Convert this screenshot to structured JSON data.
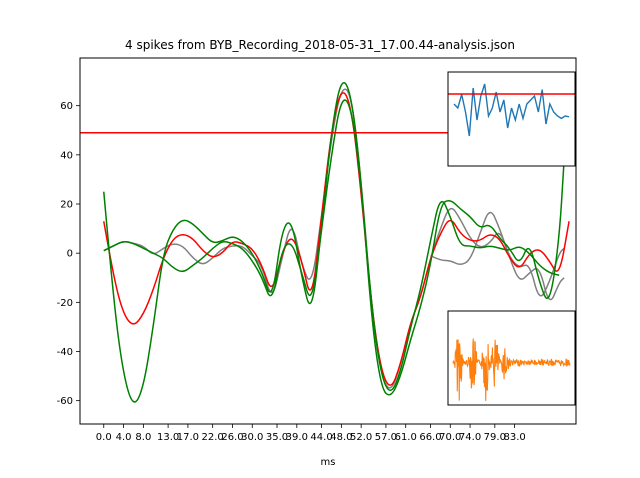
{
  "chart_data": {
    "type": "line",
    "title": "4 spikes from BYB_Recording_2018-05-31_17.00.44-analysis.json",
    "xlabel": "ms",
    "ylabel": "",
    "xlim": [
      -4.8,
      95.4
    ],
    "ylim": [
      -69.5,
      79.4
    ],
    "x_tick_labels": [
      "0.0",
      "4.0",
      "8.0",
      "13.0",
      "17.0",
      "22.0",
      "26.0",
      "30.0",
      "35.0",
      "39.0",
      "44.0",
      "48.0",
      "52.0",
      "57.0",
      "61.0",
      "66.0",
      "70.0",
      "74.0",
      "79.0",
      "83.0"
    ],
    "y_ticks": [
      -60,
      -40,
      -20,
      0,
      20,
      40,
      60
    ],
    "threshold": {
      "value": 49,
      "color": "#ff0000"
    },
    "series": [
      {
        "color": "#808080",
        "points": [
          [
            0,
            1
          ],
          [
            2,
            3
          ],
          [
            4,
            5
          ],
          [
            6,
            4
          ],
          [
            8,
            3
          ],
          [
            10,
            -1
          ],
          [
            12,
            2
          ],
          [
            14,
            4
          ],
          [
            16,
            3
          ],
          [
            18,
            -2
          ],
          [
            20,
            -5
          ],
          [
            22,
            -2
          ],
          [
            24,
            2
          ],
          [
            26,
            3
          ],
          [
            28,
            3
          ],
          [
            30,
            -1
          ],
          [
            32,
            -5
          ],
          [
            34,
            -20
          ],
          [
            36,
            -2
          ],
          [
            38,
            14
          ],
          [
            40,
            -5
          ],
          [
            42,
            -14
          ],
          [
            44,
            15
          ],
          [
            46,
            47
          ],
          [
            48,
            68
          ],
          [
            50,
            65
          ],
          [
            52,
            30
          ],
          [
            54,
            -20
          ],
          [
            56,
            -50
          ],
          [
            58,
            -57
          ],
          [
            60,
            -45
          ],
          [
            62,
            -28
          ],
          [
            64,
            -18
          ],
          [
            66,
            -2
          ],
          [
            68,
            10
          ],
          [
            70,
            20
          ],
          [
            72,
            14
          ],
          [
            74,
            6
          ],
          [
            76,
            2
          ],
          [
            78,
            4
          ],
          [
            80,
            10
          ],
          [
            82,
            -2
          ],
          [
            84,
            -6
          ],
          [
            86,
            -4
          ],
          [
            88,
            -20
          ],
          [
            90,
            -12
          ],
          [
            92,
            0
          ],
          [
            93,
            2
          ]
        ]
      },
      {
        "color": "#808080",
        "points": [
          [
            66,
            -1
          ],
          [
            68,
            -3
          ],
          [
            70,
            -3
          ],
          [
            72,
            -5
          ],
          [
            74,
            -3
          ],
          [
            76,
            8
          ],
          [
            78,
            19
          ],
          [
            80,
            10
          ],
          [
            82,
            -2
          ],
          [
            84,
            -12
          ],
          [
            86,
            -8
          ],
          [
            88,
            -5
          ],
          [
            90,
            -22
          ],
          [
            92,
            -12
          ],
          [
            93,
            -10
          ]
        ]
      },
      {
        "color": "#ff0000",
        "points": [
          [
            0,
            13
          ],
          [
            2,
            -10
          ],
          [
            4,
            -25
          ],
          [
            6,
            -30
          ],
          [
            8,
            -25
          ],
          [
            10,
            -15
          ],
          [
            12,
            -2
          ],
          [
            14,
            6
          ],
          [
            16,
            8
          ],
          [
            18,
            6
          ],
          [
            20,
            1
          ],
          [
            22,
            -2
          ],
          [
            24,
            0
          ],
          [
            26,
            5
          ],
          [
            28,
            4
          ],
          [
            30,
            2
          ],
          [
            32,
            -5
          ],
          [
            34,
            -17
          ],
          [
            36,
            0
          ],
          [
            38,
            8
          ],
          [
            40,
            -3
          ],
          [
            42,
            -21
          ],
          [
            44,
            15
          ],
          [
            46,
            50
          ],
          [
            48,
            68
          ],
          [
            50,
            60
          ],
          [
            52,
            25
          ],
          [
            54,
            -20
          ],
          [
            56,
            -48
          ],
          [
            58,
            -56
          ],
          [
            60,
            -45
          ],
          [
            62,
            -28
          ],
          [
            64,
            -18
          ],
          [
            66,
            -2
          ],
          [
            68,
            8
          ],
          [
            70,
            15
          ],
          [
            72,
            8
          ],
          [
            74,
            5
          ],
          [
            76,
            5
          ],
          [
            78,
            8
          ],
          [
            80,
            6
          ],
          [
            82,
            -2
          ],
          [
            84,
            -7
          ],
          [
            86,
            0
          ],
          [
            88,
            2
          ],
          [
            90,
            -3
          ],
          [
            92,
            -10
          ],
          [
            94,
            13
          ]
        ]
      },
      {
        "color": "#008000",
        "points": [
          [
            0,
            25
          ],
          [
            2,
            -20
          ],
          [
            4,
            -50
          ],
          [
            6,
            -63
          ],
          [
            8,
            -55
          ],
          [
            10,
            -30
          ],
          [
            12,
            0
          ],
          [
            14,
            10
          ],
          [
            16,
            14
          ],
          [
            18,
            12
          ],
          [
            20,
            8
          ],
          [
            22,
            4
          ],
          [
            24,
            5
          ],
          [
            26,
            7
          ],
          [
            28,
            5
          ],
          [
            30,
            0
          ],
          [
            32,
            -8
          ],
          [
            34,
            -20
          ],
          [
            36,
            10
          ],
          [
            38,
            14
          ],
          [
            40,
            -10
          ],
          [
            42,
            -26
          ],
          [
            44,
            10
          ],
          [
            46,
            50
          ],
          [
            48,
            72
          ],
          [
            50,
            65
          ],
          [
            52,
            30
          ],
          [
            54,
            -25
          ],
          [
            56,
            -55
          ],
          [
            58,
            -59
          ],
          [
            60,
            -50
          ],
          [
            62,
            -35
          ],
          [
            64,
            -22
          ],
          [
            66,
            -5
          ],
          [
            68,
            20
          ],
          [
            70,
            22
          ],
          [
            72,
            18
          ],
          [
            74,
            15
          ],
          [
            76,
            10
          ],
          [
            78,
            12
          ],
          [
            80,
            6
          ],
          [
            82,
            2
          ],
          [
            84,
            -5
          ],
          [
            86,
            5
          ],
          [
            88,
            -12
          ],
          [
            90,
            -22
          ],
          [
            92,
            5
          ],
          [
            93,
            38
          ]
        ]
      },
      {
        "color": "#008000",
        "points": [
          [
            0,
            1
          ],
          [
            2,
            3
          ],
          [
            4,
            5
          ],
          [
            6,
            4
          ],
          [
            8,
            2
          ],
          [
            10,
            0
          ],
          [
            12,
            -2
          ],
          [
            14,
            -6
          ],
          [
            16,
            -8
          ],
          [
            18,
            -5
          ],
          [
            20,
            -2
          ],
          [
            22,
            2
          ],
          [
            24,
            5
          ],
          [
            26,
            4
          ],
          [
            28,
            2
          ],
          [
            30,
            -3
          ],
          [
            32,
            -10
          ],
          [
            34,
            -21
          ],
          [
            36,
            2
          ],
          [
            38,
            5
          ],
          [
            40,
            -8
          ],
          [
            42,
            -22
          ],
          [
            44,
            10
          ],
          [
            46,
            40
          ],
          [
            48,
            64
          ],
          [
            50,
            60
          ],
          [
            52,
            28
          ],
          [
            54,
            -20
          ],
          [
            56,
            -50
          ],
          [
            58,
            -58
          ],
          [
            60,
            -48
          ],
          [
            62,
            -30
          ],
          [
            64,
            -15
          ],
          [
            66,
            5
          ],
          [
            68,
            24
          ],
          [
            70,
            15
          ],
          [
            72,
            3
          ],
          [
            74,
            3
          ],
          [
            76,
            2
          ],
          [
            78,
            3
          ],
          [
            80,
            2
          ],
          [
            82,
            1
          ],
          [
            84,
            3
          ],
          [
            86,
            0
          ],
          [
            88,
            -5
          ],
          [
            90,
            -8
          ],
          [
            92,
            -9
          ]
        ]
      }
    ],
    "inset_top": {
      "color": "#1f77b4",
      "threshold_line": true,
      "description_values": [
        0.3,
        0.35,
        0.18,
        0.4,
        0.7,
        0.1,
        0.5,
        0.2,
        0.05,
        0.45,
        0.35,
        0.15,
        0.4,
        0.25,
        0.6,
        0.35,
        0.5,
        0.3,
        0.48,
        0.3,
        0.25,
        0.2,
        0.4,
        0.12,
        0.55,
        0.3,
        0.4,
        0.45,
        0.48,
        0.45,
        0.46
      ],
      "ylim": [
        0,
        1
      ]
    },
    "inset_bottom": {
      "color": "#ff7f0e",
      "ylim": [
        0,
        1
      ]
    }
  }
}
